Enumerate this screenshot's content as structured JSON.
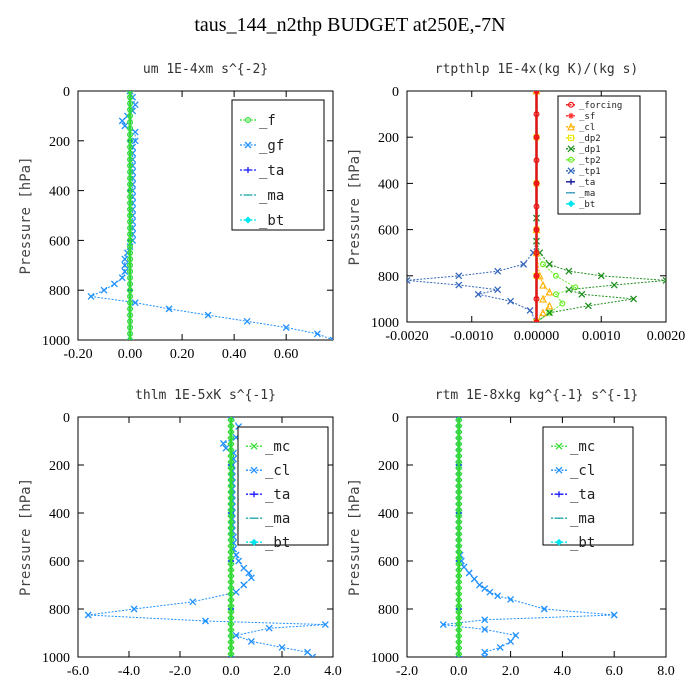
{
  "title": "taus_144_n2thp  BUDGET at250E,-7N",
  "chart_data": [
    {
      "type": "line",
      "title": "um   1E-4xm s^{-2}",
      "ylabel": "Pressure [hPa]",
      "xlim": [
        -0.2,
        0.78
      ],
      "ylim": [
        0,
        1000
      ],
      "xticks": [
        -0.2,
        0.0,
        0.2,
        0.4,
        0.6
      ],
      "xtick_labels": [
        "-0.20",
        "0.00",
        "0.20",
        "0.40",
        "0.60"
      ],
      "yticks": [
        0,
        200,
        400,
        600,
        800,
        1000
      ],
      "legend_position": "top-right",
      "legend_size": "large",
      "series": [
        {
          "name": "_f",
          "color": "#33dd33",
          "marker": "o",
          "x": [
            0,
            0,
            0,
            0,
            0,
            0,
            0,
            0,
            0,
            0,
            0,
            0,
            0,
            0,
            0,
            0,
            0,
            0,
            0,
            0,
            0,
            0,
            0,
            0,
            0,
            0,
            0,
            0,
            0,
            0,
            0,
            0,
            0,
            0,
            0,
            0,
            0,
            0,
            0,
            0,
            0
          ],
          "y": [
            0,
            25,
            50,
            75,
            100,
            125,
            150,
            175,
            200,
            225,
            250,
            275,
            300,
            325,
            350,
            375,
            400,
            425,
            450,
            475,
            500,
            525,
            550,
            575,
            600,
            625,
            650,
            675,
            700,
            725,
            750,
            775,
            800,
            825,
            850,
            875,
            900,
            925,
            950,
            975,
            1000
          ]
        },
        {
          "name": "_gf",
          "color": "#1e90ff",
          "marker": "x",
          "x": [
            0,
            0.01,
            0.02,
            0.01,
            -0.01,
            -0.03,
            -0.02,
            0.02,
            0.02,
            0.01,
            0.01,
            0.01,
            0.01,
            0.01,
            0.01,
            0.01,
            0.01,
            0.01,
            0.01,
            0.01,
            0.01,
            0.01,
            0.01,
            0.01,
            0.01,
            0.0,
            -0.01,
            -0.02,
            -0.02,
            -0.02,
            -0.03,
            -0.06,
            -0.1,
            -0.15,
            0.02,
            0.15,
            0.3,
            0.45,
            0.6,
            0.72,
            0.78
          ],
          "y": [
            0,
            25,
            55,
            80,
            100,
            120,
            140,
            165,
            200,
            225,
            250,
            275,
            300,
            325,
            350,
            375,
            400,
            425,
            450,
            475,
            500,
            525,
            550,
            575,
            600,
            625,
            650,
            675,
            700,
            725,
            750,
            775,
            800,
            825,
            850,
            875,
            900,
            925,
            950,
            975,
            1000
          ]
        },
        {
          "name": "_ta",
          "color": "#1a1aff",
          "marker": "+",
          "x": [
            0,
            0,
            0,
            0,
            0,
            0
          ],
          "y": [
            0,
            200,
            400,
            600,
            800,
            1000
          ]
        },
        {
          "name": "_ma",
          "color": "#22aaaa",
          "marker": "-",
          "x": [
            0,
            0,
            0,
            0,
            0,
            0
          ],
          "y": [
            0,
            200,
            400,
            600,
            800,
            1000
          ]
        },
        {
          "name": "_bt",
          "color": "#00e5ee",
          "marker": "d",
          "x": [
            0,
            0,
            0,
            0,
            0,
            0
          ],
          "y": [
            0,
            200,
            400,
            600,
            800,
            1000
          ]
        }
      ]
    },
    {
      "type": "line",
      "title": "rtpthlp   1E-4x(kg K)/(kg s)",
      "ylabel": "Pressure [hPa]",
      "xlim": [
        -0.002,
        0.002
      ],
      "ylim": [
        0,
        1000
      ],
      "xticks": [
        -0.002,
        -0.001,
        0.0,
        0.001,
        0.002
      ],
      "xtick_labels": [
        "-0.0020",
        "-0.0010",
        "0.00000",
        "0.0010",
        "0.0020"
      ],
      "yticks": [
        0,
        200,
        400,
        600,
        800,
        1000
      ],
      "legend_position": "top-right",
      "legend_size": "small",
      "series": [
        {
          "name": "_forcing",
          "color": "#ee1111",
          "marker": "o",
          "x": [
            0,
            0,
            0,
            0,
            0,
            0,
            0,
            0,
            0,
            0,
            0
          ],
          "y": [
            0,
            100,
            200,
            300,
            400,
            500,
            600,
            700,
            800,
            900,
            1000
          ]
        },
        {
          "name": "_sf",
          "color": "#ff3333",
          "marker": "*",
          "x": [
            0,
            0,
            0,
            0,
            0,
            0
          ],
          "y": [
            0,
            200,
            400,
            600,
            800,
            1000
          ]
        },
        {
          "name": "_cl",
          "color": "#ffb000",
          "marker": "^",
          "x": [
            0,
            0,
            0,
            5e-05,
            0.0001,
            0.0002,
            0.0001,
            0.0002,
            0.0001,
            0
          ],
          "y": [
            0,
            600,
            700,
            800,
            840,
            870,
            900,
            930,
            960,
            1000
          ]
        },
        {
          "name": "_dp2",
          "color": "#e8e800",
          "marker": "s",
          "x": [
            0,
            0,
            0,
            0,
            0,
            0
          ],
          "y": [
            0,
            200,
            400,
            600,
            800,
            1000
          ]
        },
        {
          "name": "_dp1",
          "color": "#1f8f1f",
          "marker": "x",
          "x": [
            0,
            0,
            0,
            5e-05,
            0.0002,
            0.0005,
            0.001,
            0.002,
            0.0012,
            0.0005,
            0.0007,
            0.0015,
            0.0008,
            0.0002,
            0
          ],
          "y": [
            0,
            550,
            650,
            700,
            750,
            780,
            800,
            820,
            840,
            860,
            880,
            900,
            930,
            960,
            1000
          ]
        },
        {
          "name": "_tp2",
          "color": "#66ee22",
          "marker": "o",
          "x": [
            0,
            0,
            0,
            0.0001,
            0.0003,
            0.0006,
            0.0003,
            0.0004,
            0.0002,
            0
          ],
          "y": [
            0,
            600,
            700,
            750,
            800,
            850,
            880,
            920,
            960,
            1000
          ]
        },
        {
          "name": "_tp1",
          "color": "#3366bb",
          "marker": "x",
          "x": [
            0,
            0,
            0,
            -5e-05,
            -0.0002,
            -0.0006,
            -0.0012,
            -0.002,
            -0.0012,
            -0.0006,
            -0.0009,
            -0.0004,
            -0.0001,
            0
          ],
          "y": [
            0,
            550,
            650,
            700,
            750,
            780,
            800,
            820,
            840,
            860,
            880,
            910,
            950,
            1000
          ]
        },
        {
          "name": "_ta",
          "color": "#111199",
          "marker": "+",
          "x": [
            0,
            0,
            0,
            0,
            0,
            0
          ],
          "y": [
            0,
            200,
            400,
            600,
            800,
            1000
          ]
        },
        {
          "name": "_ma",
          "color": "#3399bb",
          "marker": "-",
          "x": [
            0,
            0,
            0,
            0,
            0,
            0
          ],
          "y": [
            0,
            200,
            400,
            600,
            800,
            1000
          ]
        },
        {
          "name": "_bt",
          "color": "#00e5ee",
          "marker": "d",
          "x": [
            0,
            0,
            0,
            0,
            0,
            0
          ],
          "y": [
            0,
            200,
            400,
            600,
            800,
            1000
          ]
        }
      ]
    },
    {
      "type": "line",
      "title": "thlm   1E-5xK s^{-1}",
      "ylabel": "Pressure [hPa]",
      "xlim": [
        -6.0,
        4.0
      ],
      "ylim": [
        0,
        1000
      ],
      "xticks": [
        -6,
        -4,
        -2,
        0,
        2,
        4
      ],
      "xtick_labels": [
        "-6.0",
        "-4.0",
        "-2.0",
        "0.0",
        "2.0",
        "4.0"
      ],
      "yticks": [
        0,
        200,
        400,
        600,
        800,
        1000
      ],
      "legend_position": "top-right",
      "legend_size": "large",
      "series": [
        {
          "name": "_mc",
          "color": "#33dd33",
          "marker": "x",
          "x": [
            0,
            0,
            0,
            0,
            0,
            0,
            0,
            0,
            0,
            0,
            0,
            0,
            0,
            0,
            0,
            0,
            0,
            0,
            0,
            0,
            0,
            0,
            0,
            0,
            0,
            0,
            0,
            0,
            0,
            0,
            0,
            0,
            0,
            0,
            0,
            0,
            0,
            0,
            0,
            0,
            0
          ],
          "y": [
            0,
            25,
            50,
            75,
            100,
            125,
            150,
            175,
            200,
            225,
            250,
            275,
            300,
            325,
            350,
            375,
            400,
            425,
            450,
            475,
            500,
            525,
            550,
            575,
            600,
            625,
            650,
            675,
            700,
            725,
            750,
            775,
            800,
            825,
            850,
            875,
            900,
            925,
            950,
            975,
            1000
          ]
        },
        {
          "name": "_cl",
          "color": "#1e90ff",
          "marker": "x",
          "x": [
            0,
            0.3,
            0.8,
            0.2,
            -0.3,
            -0.2,
            0.1,
            0.1,
            0.05,
            0.05,
            0.05,
            0.05,
            0.05,
            0.05,
            0.05,
            0.05,
            0.05,
            0.05,
            0.05,
            0.05,
            0.1,
            0.1,
            0.1,
            0.2,
            0.3,
            0.5,
            0.7,
            0.8,
            0.5,
            0.2,
            -1.5,
            -3.8,
            -5.6,
            -1.0,
            3.7,
            1.5,
            0.2,
            0.8,
            2.0,
            3.0,
            3.2
          ],
          "y": [
            0,
            40,
            60,
            85,
            110,
            130,
            150,
            175,
            200,
            225,
            250,
            275,
            300,
            325,
            350,
            375,
            400,
            425,
            450,
            475,
            500,
            525,
            550,
            575,
            600,
            630,
            650,
            670,
            700,
            730,
            770,
            800,
            825,
            850,
            865,
            880,
            910,
            935,
            960,
            980,
            1000
          ]
        },
        {
          "name": "_ta",
          "color": "#1a1aff",
          "marker": "+",
          "x": [
            0,
            0,
            0,
            0,
            0,
            0
          ],
          "y": [
            0,
            200,
            400,
            600,
            800,
            1000
          ]
        },
        {
          "name": "_ma",
          "color": "#22aaaa",
          "marker": "-",
          "x": [
            0,
            0,
            0,
            0,
            0,
            0
          ],
          "y": [
            0,
            200,
            400,
            600,
            800,
            1000
          ]
        },
        {
          "name": "_bt",
          "color": "#00e5ee",
          "marker": "d",
          "x": [
            0,
            0,
            0,
            0,
            0,
            0
          ],
          "y": [
            0,
            200,
            400,
            600,
            800,
            1000
          ]
        }
      ]
    },
    {
      "type": "line",
      "title": "rtm   1E-8xkg kg^{-1} s^{-1}",
      "ylabel": "Pressure [hPa]",
      "xlim": [
        -2.0,
        8.0
      ],
      "ylim": [
        0,
        1000
      ],
      "xticks": [
        -2,
        0,
        2,
        4,
        6,
        8
      ],
      "xtick_labels": [
        "-2.0",
        "0.0",
        "2.0",
        "4.0",
        "6.0",
        "8.0"
      ],
      "yticks": [
        0,
        200,
        400,
        600,
        800,
        1000
      ],
      "legend_position": "top-right",
      "legend_size": "large",
      "series": [
        {
          "name": "_mc",
          "color": "#33dd33",
          "marker": "x",
          "x": [
            0,
            0,
            0,
            0,
            0,
            0,
            0,
            0,
            0,
            0,
            0,
            0,
            0,
            0,
            0,
            0,
            0,
            0,
            0,
            0,
            0,
            0,
            0,
            0,
            0,
            0,
            0,
            0,
            0,
            0,
            0,
            0,
            0,
            0,
            0,
            0,
            0,
            0,
            0,
            0,
            0
          ],
          "y": [
            0,
            25,
            50,
            75,
            100,
            125,
            150,
            175,
            200,
            225,
            250,
            275,
            300,
            325,
            350,
            375,
            400,
            425,
            450,
            475,
            500,
            525,
            550,
            575,
            600,
            625,
            650,
            675,
            700,
            725,
            750,
            775,
            800,
            825,
            850,
            875,
            900,
            925,
            950,
            975,
            1000
          ]
        },
        {
          "name": "_cl",
          "color": "#1e90ff",
          "marker": "x",
          "x": [
            0,
            0,
            0,
            0,
            0,
            0,
            0,
            0,
            0,
            0,
            0,
            0,
            0,
            0,
            0,
            0,
            0,
            0,
            0,
            0,
            0,
            0,
            0,
            0.05,
            0.1,
            0.2,
            0.4,
            0.6,
            0.8,
            1.0,
            1.2,
            1.5,
            2.0,
            3.3,
            6.0,
            1.0,
            -0.6,
            1.0,
            2.2,
            2.0,
            1.6,
            1.0,
            1.0
          ],
          "y": [
            0,
            25,
            50,
            75,
            100,
            125,
            150,
            175,
            200,
            225,
            250,
            275,
            300,
            325,
            350,
            375,
            400,
            425,
            450,
            475,
            500,
            525,
            550,
            575,
            600,
            625,
            650,
            675,
            700,
            715,
            730,
            745,
            760,
            800,
            825,
            845,
            865,
            885,
            910,
            935,
            960,
            980,
            1000
          ]
        },
        {
          "name": "_ta",
          "color": "#1a1aff",
          "marker": "+",
          "x": [
            0,
            0,
            0,
            0,
            0,
            0
          ],
          "y": [
            0,
            200,
            400,
            600,
            800,
            1000
          ]
        },
        {
          "name": "_ma",
          "color": "#22aaaa",
          "marker": "-",
          "x": [
            0,
            0,
            0,
            0,
            0,
            0
          ],
          "y": [
            0,
            200,
            400,
            600,
            800,
            1000
          ]
        },
        {
          "name": "_bt",
          "color": "#00e5ee",
          "marker": "d",
          "x": [
            0,
            0,
            0,
            0,
            0,
            0
          ],
          "y": [
            0,
            200,
            400,
            600,
            800,
            1000
          ]
        }
      ]
    }
  ]
}
